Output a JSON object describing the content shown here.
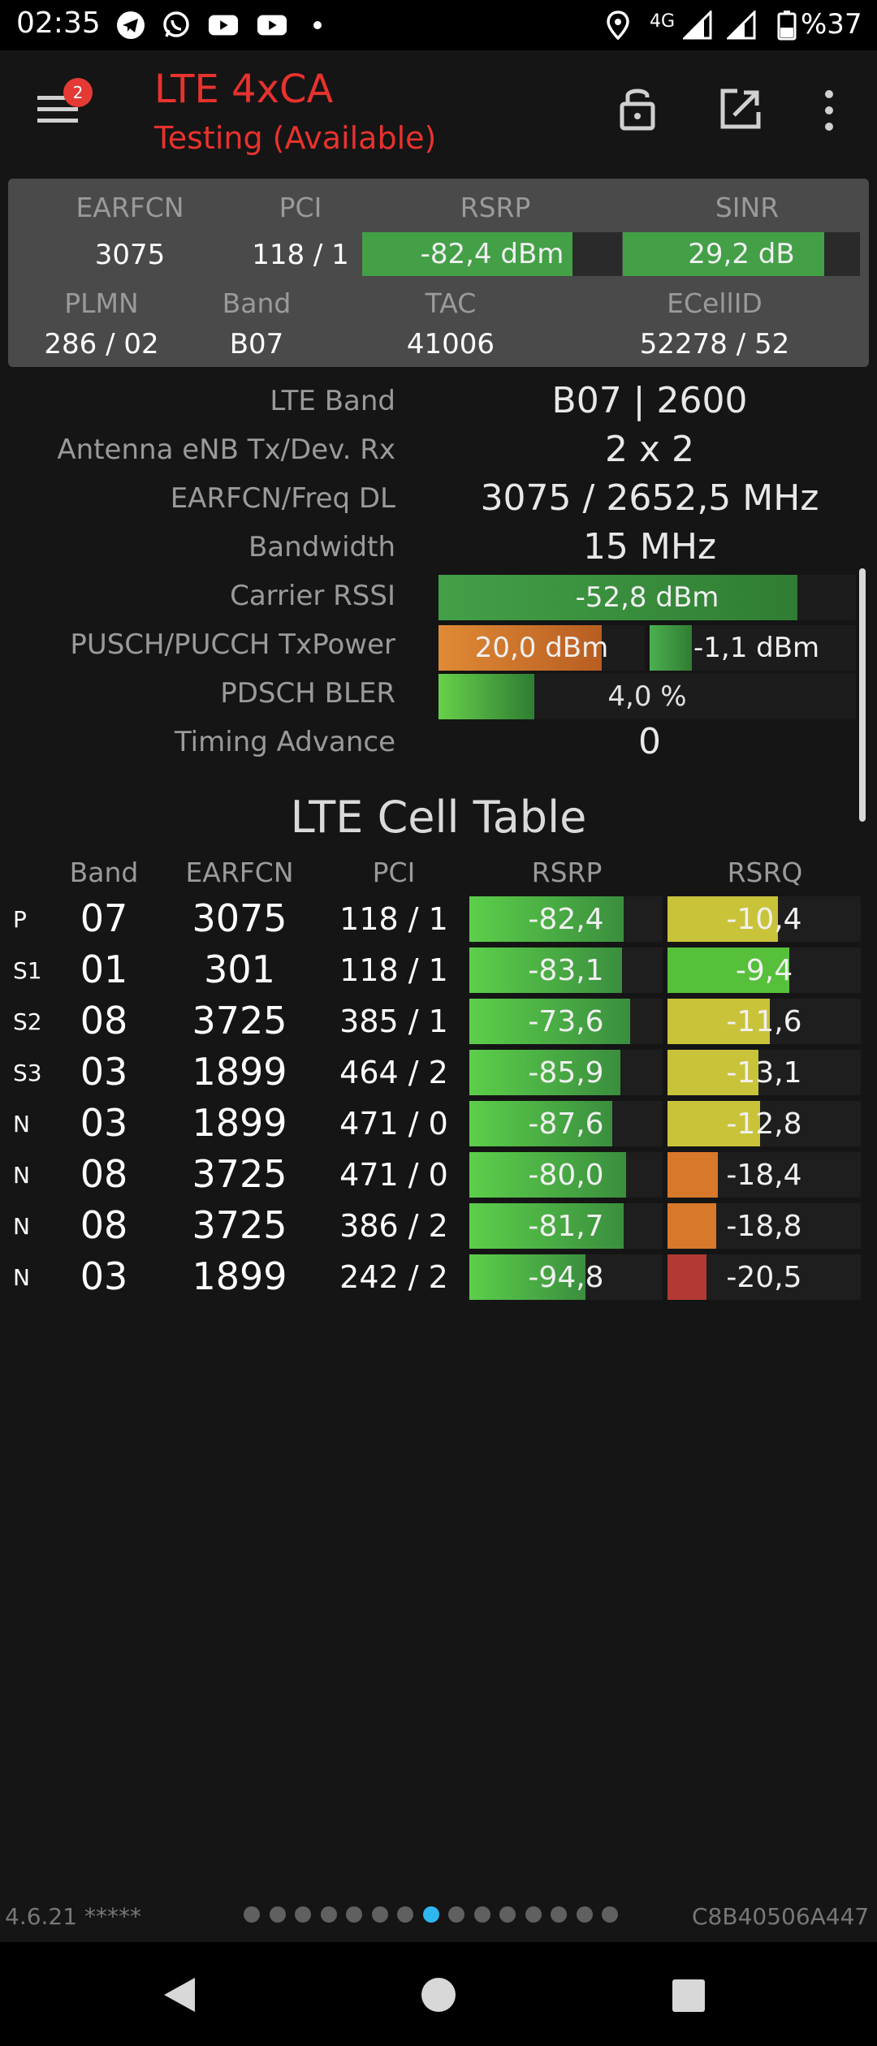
{
  "status_bar": {
    "time": "02:35",
    "network": "4G",
    "battery": "%37",
    "icons": [
      "telegram-icon",
      "whatsapp-icon",
      "youtube-icon",
      "youtube-icon",
      "dot-icon",
      "location-icon",
      "signal-icon",
      "signal-icon",
      "battery-icon"
    ]
  },
  "app_bar": {
    "title": "LTE 4xCA",
    "subtitle": "Testing (Available)",
    "badge_count": "2",
    "icons": [
      "menu-icon",
      "lock-icon",
      "open-external-icon",
      "more-vert-icon"
    ]
  },
  "top_panel": {
    "headers1": [
      "EARFCN",
      "PCI",
      "RSRP",
      "SINR"
    ],
    "earfcn": "3075",
    "pci": "118 / 1",
    "rsrp": {
      "text": "-82,4 dBm",
      "level": 0.81,
      "color": "#43a047"
    },
    "sinr": {
      "text": "29,2 dB",
      "level": 0.85,
      "color": "#43a047"
    },
    "headers2": [
      "PLMN",
      "Band",
      "TAC",
      "ECellID"
    ],
    "plmn": "286 / 02",
    "band": "B07",
    "tac": "41006",
    "ecellid": "52278 / 52"
  },
  "info": {
    "lte_band": {
      "label": "LTE Band",
      "value": "B07 | 2600"
    },
    "antenna": {
      "label": "Antenna eNB Tx/Dev. Rx",
      "value": "2 x 2"
    },
    "earfcn_dl": {
      "label": "EARFCN/Freq DL",
      "value": "3075 / 2652,5 MHz"
    },
    "bandwidth": {
      "label": "Bandwidth",
      "value": "15 MHz"
    },
    "rssi": {
      "label": "Carrier RSSI",
      "value": "-52,8 dBm",
      "level": 0.86
    },
    "txpower": {
      "label": "PUSCH/PUCCH TxPower",
      "pusch": "20,0 dBm",
      "pusch_level": 0.79,
      "pucch": "-1,1 dBm",
      "pucch_level": 0.32
    },
    "bler": {
      "label": "PDSCH BLER",
      "value": "4,0 %",
      "level": 0.36
    },
    "ta": {
      "label": "Timing Advance",
      "value": "0"
    }
  },
  "cell_table": {
    "title": "LTE Cell Table",
    "headers": [
      "Band",
      "EARFCN",
      "PCI",
      "RSRP",
      "RSRQ"
    ],
    "rows": [
      {
        "tag": "P",
        "band": "07",
        "earfcn": "3075",
        "pci": "118 / 1",
        "rsrp": "-82,4",
        "rsrp_level": 0.8,
        "rsrq": "-10,4",
        "rsrq_level": 0.57,
        "rsrq_color": "#c9c33a"
      },
      {
        "tag": "S1",
        "band": "01",
        "earfcn": "301",
        "pci": "118 / 1",
        "rsrp": "-83,1",
        "rsrp_level": 0.79,
        "rsrq": "-9,4",
        "rsrq_level": 0.63,
        "rsrq_color": "#56c03a"
      },
      {
        "tag": "S2",
        "band": "08",
        "earfcn": "3725",
        "pci": "385 / 1",
        "rsrp": "-73,6",
        "rsrp_level": 0.83,
        "rsrq": "-11,6",
        "rsrq_level": 0.53,
        "rsrq_color": "#c9c33a"
      },
      {
        "tag": "S3",
        "band": "03",
        "earfcn": "1899",
        "pci": "464 / 2",
        "rsrp": "-85,9",
        "rsrp_level": 0.78,
        "rsrq": "-13,1",
        "rsrq_level": 0.47,
        "rsrq_color": "#c9c33a"
      },
      {
        "tag": "N",
        "band": "03",
        "earfcn": "1899",
        "pci": "471 / 0",
        "rsrp": "-87,6",
        "rsrp_level": 0.74,
        "rsrq": "-12,8",
        "rsrq_level": 0.48,
        "rsrq_color": "#c9c33a"
      },
      {
        "tag": "N",
        "band": "08",
        "earfcn": "3725",
        "pci": "471 / 0",
        "rsrp": "-80,0",
        "rsrp_level": 0.81,
        "rsrq": "-18,4",
        "rsrq_level": 0.26,
        "rsrq_color": "#d8782a"
      },
      {
        "tag": "N",
        "band": "08",
        "earfcn": "3725",
        "pci": "386 / 2",
        "rsrp": "-81,7",
        "rsrp_level": 0.8,
        "rsrq": "-18,8",
        "rsrq_level": 0.25,
        "rsrq_color": "#d8782a"
      },
      {
        "tag": "N",
        "band": "03",
        "earfcn": "1899",
        "pci": "242 / 2",
        "rsrp": "-94,8",
        "rsrp_level": 0.6,
        "rsrq": "-20,5",
        "rsrq_level": 0.2,
        "rsrq_color": "#b23a32"
      }
    ]
  },
  "footer": {
    "version": "4.6.21 *****",
    "device_id": "C8B40506A447",
    "page_count": 15,
    "active_page": 8
  },
  "nav_bar": {
    "icons": [
      "back-icon",
      "home-icon",
      "recents-icon"
    ]
  }
}
